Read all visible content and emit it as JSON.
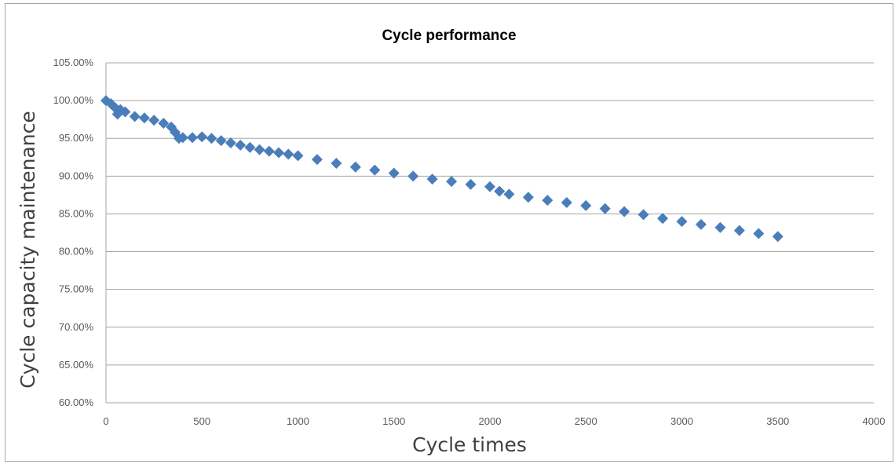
{
  "chart_data": {
    "type": "scatter",
    "title": "Cycle performance",
    "xlabel": "Cycle times",
    "ylabel": "Cycle capacity maintenance",
    "xlim": [
      0,
      4000
    ],
    "ylim": [
      0.6,
      1.05
    ],
    "x_ticks": [
      "0",
      "500",
      "1000",
      "1500",
      "2000",
      "2500",
      "3000",
      "3500",
      "4000"
    ],
    "y_ticks": [
      "60.00%",
      "65.00%",
      "70.00%",
      "75.00%",
      "80.00%",
      "85.00%",
      "90.00%",
      "95.00%",
      "100.00%",
      "105.00%"
    ],
    "grid": "horizontal",
    "legend": "none",
    "marker": "diamond",
    "series_color": "#4a7ebb",
    "series": [
      {
        "x": [
          0,
          25,
          50,
          60,
          75,
          100,
          150,
          200,
          250,
          300,
          340,
          360,
          380,
          400,
          450,
          500,
          550,
          600,
          650,
          700,
          750,
          800,
          850,
          900,
          950,
          1000,
          1100,
          1200,
          1300,
          1400,
          1500,
          1600,
          1700,
          1800,
          1900,
          2000,
          2050,
          2100,
          2200,
          2300,
          2400,
          2500,
          2600,
          2700,
          2800,
          2900,
          3000,
          3100,
          3200,
          3300,
          3400,
          3500
        ],
        "y": [
          1.0,
          0.996,
          0.99,
          0.982,
          0.988,
          0.985,
          0.979,
          0.977,
          0.974,
          0.97,
          0.965,
          0.958,
          0.95,
          0.951,
          0.951,
          0.952,
          0.95,
          0.947,
          0.944,
          0.941,
          0.938,
          0.935,
          0.933,
          0.931,
          0.929,
          0.927,
          0.922,
          0.917,
          0.912,
          0.908,
          0.904,
          0.9,
          0.896,
          0.893,
          0.889,
          0.886,
          0.88,
          0.876,
          0.872,
          0.868,
          0.865,
          0.861,
          0.857,
          0.853,
          0.849,
          0.844,
          0.84,
          0.836,
          0.832,
          0.828,
          0.824,
          0.82
        ]
      }
    ]
  }
}
